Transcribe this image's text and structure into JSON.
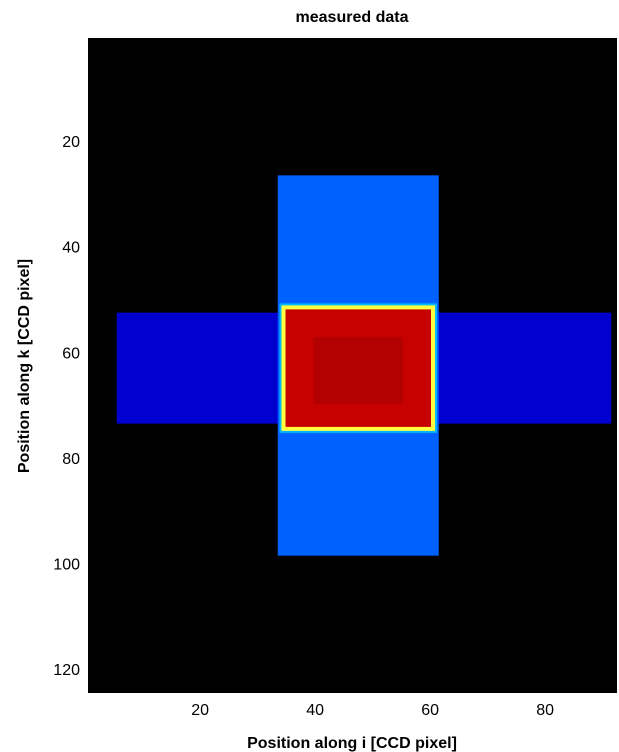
{
  "chart_data": {
    "type": "heatmap",
    "title": "measured data",
    "xlabel": "Position along i [CCD pixel]",
    "ylabel": "Position along k [CCD pixel]",
    "xlim": [
      0.5,
      92.5
    ],
    "ylim": [
      0.5,
      124.5
    ],
    "y_reversed": true,
    "colormap": "jet",
    "grid": false,
    "legend": "none",
    "xticks": [
      20,
      40,
      60,
      80
    ],
    "yticks": [
      20,
      40,
      60,
      80,
      100,
      120
    ],
    "colors": {
      "background": "#000000",
      "low": "#000080",
      "mid": "#0050ff",
      "edge": "#ffff40",
      "high": "#c00000"
    },
    "regions": [
      {
        "name": "horizontal band",
        "x": [
          6,
          91
        ],
        "y": [
          53,
          73
        ],
        "level": 0.08
      },
      {
        "name": "vertical band",
        "x": [
          34,
          61
        ],
        "y": [
          27,
          98
        ],
        "level": 0.22
      },
      {
        "name": "center",
        "x": [
          35,
          60
        ],
        "y": [
          52,
          74
        ],
        "level": 0.93
      }
    ]
  }
}
